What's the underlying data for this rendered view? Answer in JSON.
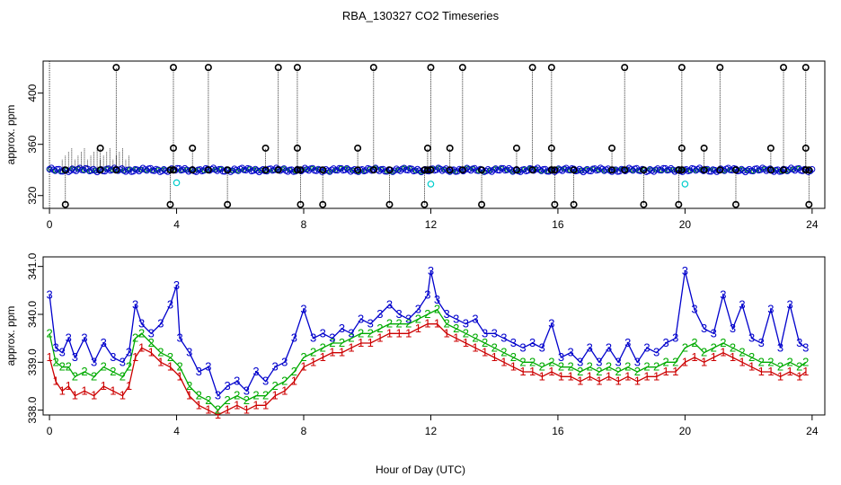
{
  "chart_data": [
    {
      "type": "scatter",
      "title": "RBA_130327  CO2 Timeseries",
      "xlabel": "",
      "ylabel": "approx. ppm",
      "xlim": [
        -0.2,
        24.4
      ],
      "ylim": [
        310,
        425
      ],
      "xticks": [
        0,
        4,
        8,
        12,
        16,
        20,
        24
      ],
      "yticks": [
        320,
        360,
        400
      ],
      "baseline": 340,
      "spikes_high": [
        2.1,
        3.9,
        5.0,
        7.2,
        7.8,
        10.2,
        12.0,
        13.0,
        15.2,
        15.8,
        18.1,
        19.9,
        21.1,
        23.1,
        23.8
      ],
      "spikes_low": [
        0.5,
        3.8,
        5.6,
        7.9,
        8.6,
        10.7,
        11.8,
        13.6,
        15.9,
        16.5,
        18.7,
        19.8,
        21.6,
        23.9
      ],
      "spikes_mid": [
        1.6,
        3.9,
        4.5,
        6.8,
        7.8,
        9.7,
        11.9,
        12.6,
        14.7,
        15.8,
        17.7,
        19.9,
        20.6,
        22.7,
        23.8
      ],
      "cyan_points": [
        [
          4.0,
          330
        ],
        [
          12.0,
          329
        ],
        [
          20.0,
          329
        ]
      ]
    },
    {
      "type": "line",
      "title": "",
      "xlabel": "Hour of Day (UTC)",
      "ylabel": "approx. ppm",
      "xlim": [
        -0.2,
        24.4
      ],
      "ylim": [
        337.9,
        341.2
      ],
      "xticks": [
        0,
        4,
        8,
        12,
        16,
        20,
        24
      ],
      "yticks": [
        338.0,
        339.0,
        340.0,
        341.0
      ],
      "series": [
        {
          "name": "1",
          "color": "#cc0000",
          "values": [
            [
              0.0,
              339.1
            ],
            [
              0.2,
              338.6
            ],
            [
              0.4,
              338.4
            ],
            [
              0.6,
              338.5
            ],
            [
              0.8,
              338.3
            ],
            [
              1.1,
              338.4
            ],
            [
              1.4,
              338.3
            ],
            [
              1.7,
              338.5
            ],
            [
              2.0,
              338.4
            ],
            [
              2.3,
              338.3
            ],
            [
              2.5,
              338.5
            ],
            [
              2.7,
              339.1
            ],
            [
              2.9,
              339.3
            ],
            [
              3.2,
              339.2
            ],
            [
              3.5,
              339.0
            ],
            [
              3.8,
              338.9
            ],
            [
              4.1,
              338.7
            ],
            [
              4.4,
              338.3
            ],
            [
              4.7,
              338.1
            ],
            [
              5.0,
              338.0
            ],
            [
              5.3,
              337.9
            ],
            [
              5.6,
              338.0
            ],
            [
              5.9,
              338.1
            ],
            [
              6.2,
              338.0
            ],
            [
              6.5,
              338.1
            ],
            [
              6.8,
              338.1
            ],
            [
              7.1,
              338.3
            ],
            [
              7.4,
              338.4
            ],
            [
              7.7,
              338.6
            ],
            [
              8.0,
              338.9
            ],
            [
              8.3,
              339.0
            ],
            [
              8.6,
              339.1
            ],
            [
              8.9,
              339.2
            ],
            [
              9.2,
              339.2
            ],
            [
              9.5,
              339.3
            ],
            [
              9.8,
              339.4
            ],
            [
              10.1,
              339.4
            ],
            [
              10.4,
              339.5
            ],
            [
              10.7,
              339.6
            ],
            [
              11.0,
              339.6
            ],
            [
              11.3,
              339.6
            ],
            [
              11.6,
              339.7
            ],
            [
              11.9,
              339.8
            ],
            [
              12.2,
              339.8
            ],
            [
              12.5,
              339.6
            ],
            [
              12.8,
              339.5
            ],
            [
              13.1,
              339.4
            ],
            [
              13.4,
              339.3
            ],
            [
              13.7,
              339.2
            ],
            [
              14.0,
              339.1
            ],
            [
              14.3,
              339.0
            ],
            [
              14.6,
              338.9
            ],
            [
              14.9,
              338.8
            ],
            [
              15.2,
              338.8
            ],
            [
              15.5,
              338.7
            ],
            [
              15.8,
              338.8
            ],
            [
              16.1,
              338.7
            ],
            [
              16.4,
              338.7
            ],
            [
              16.7,
              338.6
            ],
            [
              17.0,
              338.7
            ],
            [
              17.3,
              338.6
            ],
            [
              17.6,
              338.7
            ],
            [
              17.9,
              338.6
            ],
            [
              18.2,
              338.7
            ],
            [
              18.5,
              338.6
            ],
            [
              18.8,
              338.7
            ],
            [
              19.1,
              338.7
            ],
            [
              19.4,
              338.8
            ],
            [
              19.7,
              338.8
            ],
            [
              20.0,
              339.0
            ],
            [
              20.3,
              339.1
            ],
            [
              20.6,
              339.0
            ],
            [
              20.9,
              339.1
            ],
            [
              21.2,
              339.2
            ],
            [
              21.5,
              339.1
            ],
            [
              21.8,
              339.0
            ],
            [
              22.1,
              338.9
            ],
            [
              22.4,
              338.8
            ],
            [
              22.7,
              338.8
            ],
            [
              23.0,
              338.7
            ],
            [
              23.3,
              338.8
            ],
            [
              23.6,
              338.7
            ],
            [
              23.8,
              338.8
            ]
          ]
        },
        {
          "name": "2",
          "color": "#00aa00",
          "values": [
            [
              0.0,
              339.6
            ],
            [
              0.2,
              339.0
            ],
            [
              0.4,
              338.9
            ],
            [
              0.6,
              338.9
            ],
            [
              0.8,
              338.7
            ],
            [
              1.1,
              338.8
            ],
            [
              1.4,
              338.7
            ],
            [
              1.7,
              338.9
            ],
            [
              2.0,
              338.8
            ],
            [
              2.3,
              338.7
            ],
            [
              2.5,
              338.9
            ],
            [
              2.7,
              339.5
            ],
            [
              2.9,
              339.6
            ],
            [
              3.2,
              339.4
            ],
            [
              3.5,
              339.2
            ],
            [
              3.8,
              339.1
            ],
            [
              4.1,
              338.9
            ],
            [
              4.4,
              338.5
            ],
            [
              4.7,
              338.3
            ],
            [
              5.0,
              338.2
            ],
            [
              5.3,
              338.0
            ],
            [
              5.6,
              338.2
            ],
            [
              5.9,
              338.3
            ],
            [
              6.2,
              338.2
            ],
            [
              6.5,
              338.3
            ],
            [
              6.8,
              338.3
            ],
            [
              7.1,
              338.5
            ],
            [
              7.4,
              338.6
            ],
            [
              7.7,
              338.8
            ],
            [
              8.0,
              339.1
            ],
            [
              8.3,
              339.2
            ],
            [
              8.6,
              339.3
            ],
            [
              8.9,
              339.4
            ],
            [
              9.2,
              339.4
            ],
            [
              9.5,
              339.5
            ],
            [
              9.8,
              339.6
            ],
            [
              10.1,
              339.6
            ],
            [
              10.4,
              339.7
            ],
            [
              10.7,
              339.8
            ],
            [
              11.0,
              339.8
            ],
            [
              11.3,
              339.8
            ],
            [
              11.6,
              339.9
            ],
            [
              11.9,
              340.0
            ],
            [
              12.2,
              340.1
            ],
            [
              12.5,
              339.8
            ],
            [
              12.8,
              339.7
            ],
            [
              13.1,
              339.6
            ],
            [
              13.4,
              339.5
            ],
            [
              13.7,
              339.4
            ],
            [
              14.0,
              339.3
            ],
            [
              14.3,
              339.2
            ],
            [
              14.6,
              339.1
            ],
            [
              14.9,
              339.0
            ],
            [
              15.2,
              339.0
            ],
            [
              15.5,
              338.9
            ],
            [
              15.8,
              339.0
            ],
            [
              16.1,
              338.9
            ],
            [
              16.4,
              338.9
            ],
            [
              16.7,
              338.8
            ],
            [
              17.0,
              338.9
            ],
            [
              17.3,
              338.8
            ],
            [
              17.6,
              338.9
            ],
            [
              17.9,
              338.8
            ],
            [
              18.2,
              338.9
            ],
            [
              18.5,
              338.8
            ],
            [
              18.8,
              338.9
            ],
            [
              19.1,
              338.9
            ],
            [
              19.4,
              339.0
            ],
            [
              19.7,
              339.0
            ],
            [
              20.0,
              339.3
            ],
            [
              20.3,
              339.4
            ],
            [
              20.6,
              339.2
            ],
            [
              20.9,
              339.3
            ],
            [
              21.2,
              339.4
            ],
            [
              21.5,
              339.3
            ],
            [
              21.8,
              339.2
            ],
            [
              22.1,
              339.1
            ],
            [
              22.4,
              339.0
            ],
            [
              22.7,
              339.0
            ],
            [
              23.0,
              338.9
            ],
            [
              23.3,
              339.0
            ],
            [
              23.6,
              338.9
            ],
            [
              23.8,
              339.0
            ]
          ]
        },
        {
          "name": "3",
          "color": "#0000cc",
          "values": [
            [
              0.0,
              340.4
            ],
            [
              0.2,
              339.3
            ],
            [
              0.4,
              339.2
            ],
            [
              0.6,
              339.5
            ],
            [
              0.8,
              339.1
            ],
            [
              1.1,
              339.5
            ],
            [
              1.4,
              339.0
            ],
            [
              1.7,
              339.4
            ],
            [
              2.0,
              339.1
            ],
            [
              2.3,
              339.0
            ],
            [
              2.5,
              339.2
            ],
            [
              2.7,
              340.2
            ],
            [
              2.9,
              339.8
            ],
            [
              3.2,
              339.6
            ],
            [
              3.5,
              339.8
            ],
            [
              3.8,
              340.2
            ],
            [
              4.0,
              340.6
            ],
            [
              4.1,
              339.5
            ],
            [
              4.4,
              339.2
            ],
            [
              4.7,
              338.8
            ],
            [
              5.0,
              338.9
            ],
            [
              5.3,
              338.3
            ],
            [
              5.6,
              338.5
            ],
            [
              5.9,
              338.6
            ],
            [
              6.2,
              338.4
            ],
            [
              6.5,
              338.8
            ],
            [
              6.8,
              338.6
            ],
            [
              7.1,
              338.9
            ],
            [
              7.4,
              339.0
            ],
            [
              7.7,
              339.5
            ],
            [
              8.0,
              340.1
            ],
            [
              8.3,
              339.5
            ],
            [
              8.6,
              339.6
            ],
            [
              8.9,
              339.5
            ],
            [
              9.2,
              339.7
            ],
            [
              9.5,
              339.6
            ],
            [
              9.8,
              339.9
            ],
            [
              10.1,
              339.8
            ],
            [
              10.4,
              340.0
            ],
            [
              10.7,
              340.2
            ],
            [
              11.0,
              340.0
            ],
            [
              11.3,
              339.9
            ],
            [
              11.6,
              340.1
            ],
            [
              11.9,
              340.4
            ],
            [
              12.0,
              340.9
            ],
            [
              12.2,
              340.3
            ],
            [
              12.5,
              340.0
            ],
            [
              12.8,
              339.9
            ],
            [
              13.1,
              339.8
            ],
            [
              13.4,
              339.9
            ],
            [
              13.7,
              339.6
            ],
            [
              14.0,
              339.6
            ],
            [
              14.3,
              339.5
            ],
            [
              14.6,
              339.4
            ],
            [
              14.9,
              339.3
            ],
            [
              15.2,
              339.4
            ],
            [
              15.5,
              339.3
            ],
            [
              15.8,
              339.8
            ],
            [
              16.1,
              339.1
            ],
            [
              16.4,
              339.2
            ],
            [
              16.7,
              339.0
            ],
            [
              17.0,
              339.3
            ],
            [
              17.3,
              339.0
            ],
            [
              17.6,
              339.3
            ],
            [
              17.9,
              339.0
            ],
            [
              18.2,
              339.4
            ],
            [
              18.5,
              339.0
            ],
            [
              18.8,
              339.3
            ],
            [
              19.1,
              339.2
            ],
            [
              19.4,
              339.4
            ],
            [
              19.7,
              339.5
            ],
            [
              20.0,
              340.9
            ],
            [
              20.3,
              340.1
            ],
            [
              20.6,
              339.7
            ],
            [
              20.9,
              339.6
            ],
            [
              21.2,
              340.4
            ],
            [
              21.5,
              339.7
            ],
            [
              21.8,
              340.2
            ],
            [
              22.1,
              339.5
            ],
            [
              22.4,
              339.4
            ],
            [
              22.7,
              340.1
            ],
            [
              23.0,
              339.3
            ],
            [
              23.3,
              340.2
            ],
            [
              23.6,
              339.4
            ],
            [
              23.8,
              339.3
            ]
          ]
        }
      ]
    }
  ]
}
